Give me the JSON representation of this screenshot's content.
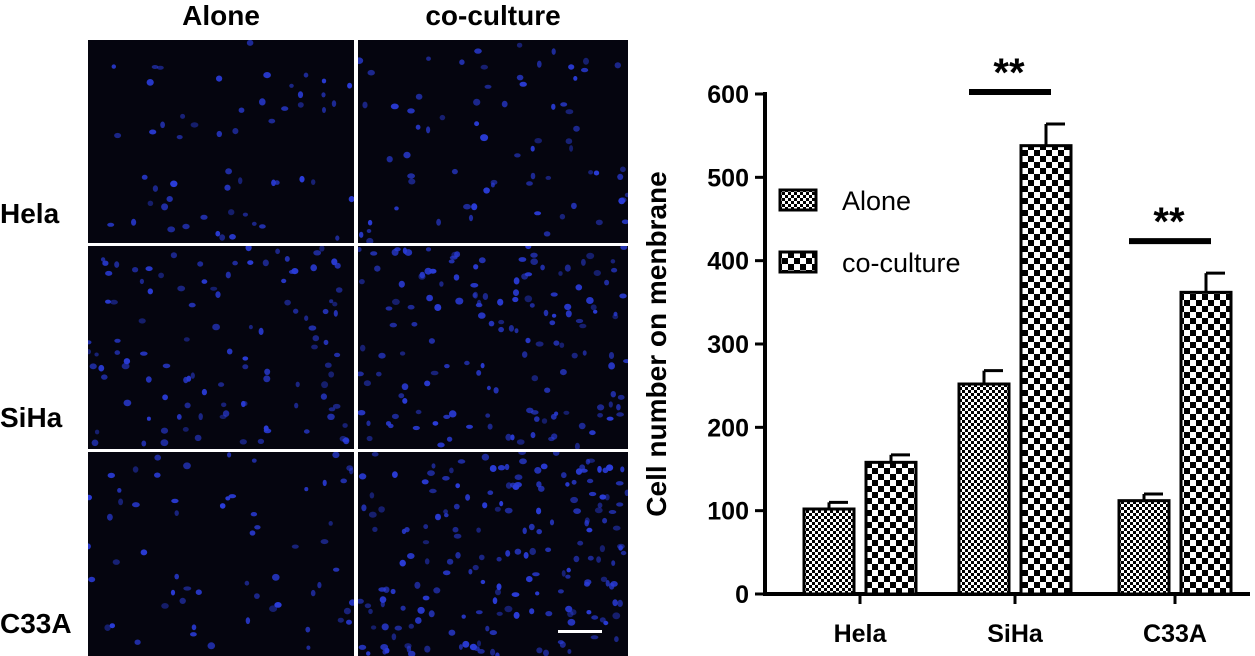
{
  "figure": {
    "column_headers": [
      "Alone",
      "co-culture"
    ],
    "row_labels": [
      "Hela",
      "SiHa",
      "C33A"
    ],
    "panel_densities": [
      [
        55,
        70
      ],
      [
        110,
        150
      ],
      [
        60,
        190
      ]
    ],
    "nuclei_color": "#2a3cd8",
    "panel_background": "#05050f"
  },
  "chart_data": {
    "type": "bar",
    "categories": [
      "Hela",
      "SiHa",
      "C33A"
    ],
    "ylabel": "Cell number on menbrane",
    "ylim": [
      0,
      600
    ],
    "yticks": [
      0,
      100,
      200,
      300,
      400,
      500,
      600
    ],
    "series": [
      {
        "name": "Alone",
        "values": [
          102,
          252,
          112
        ],
        "errors": [
          8,
          16,
          8
        ],
        "pattern": "fine-check"
      },
      {
        "name": "co-culture",
        "values": [
          158,
          538,
          362
        ],
        "errors": [
          9,
          26,
          23
        ],
        "pattern": "coarse-check"
      }
    ],
    "significance": [
      {
        "category": "SiHa",
        "label": "**"
      },
      {
        "category": "C33A",
        "label": "**"
      }
    ],
    "legend_position": "upper-left",
    "colors": {
      "bar_fill_dark": "#000000",
      "bar_fill_light": "#ffffff",
      "axis": "#000000"
    }
  }
}
